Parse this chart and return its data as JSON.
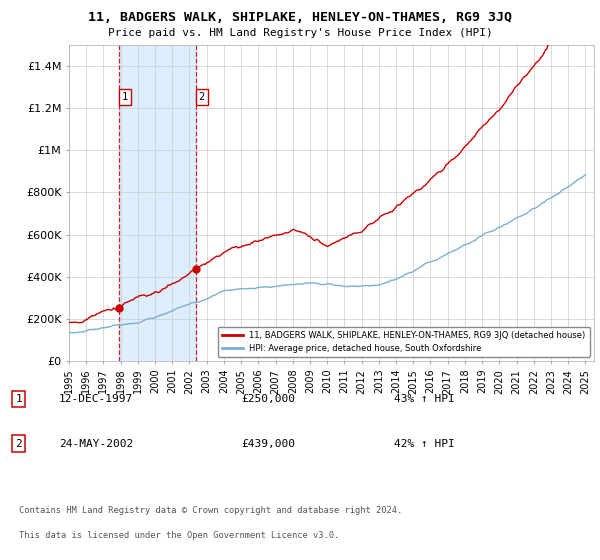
{
  "title": "11, BADGERS WALK, SHIPLAKE, HENLEY-ON-THAMES, RG9 3JQ",
  "subtitle": "Price paid vs. HM Land Registry's House Price Index (HPI)",
  "legend_line1": "11, BADGERS WALK, SHIPLAKE, HENLEY-ON-THAMES, RG9 3JQ (detached house)",
  "legend_line2": "HPI: Average price, detached house, South Oxfordshire",
  "sale1_date": "12-DEC-1997",
  "sale1_price": "£250,000",
  "sale1_hpi": "43% ↑ HPI",
  "sale1_year": 1997.92,
  "sale1_value": 250000,
  "sale2_date": "24-MAY-2002",
  "sale2_price": "£439,000",
  "sale2_hpi": "42% ↑ HPI",
  "sale2_year": 2002.38,
  "sale2_value": 439000,
  "red_color": "#cc0000",
  "blue_color": "#7ab0d4",
  "shade_color": "#ddeeff",
  "grid_color": "#cccccc",
  "footnote1": "Contains HM Land Registry data © Crown copyright and database right 2024.",
  "footnote2": "This data is licensed under the Open Government Licence v3.0.",
  "ylim_max": 1500000,
  "xlim_start": 1995.0,
  "xlim_end": 2025.5,
  "yticks": [
    0,
    200000,
    400000,
    600000,
    800000,
    1000000,
    1200000,
    1400000
  ],
  "ytick_labels": [
    "£0",
    "£200K",
    "£400K",
    "£600K",
    "£800K",
    "£1M",
    "£1.2M",
    "£1.4M"
  ]
}
